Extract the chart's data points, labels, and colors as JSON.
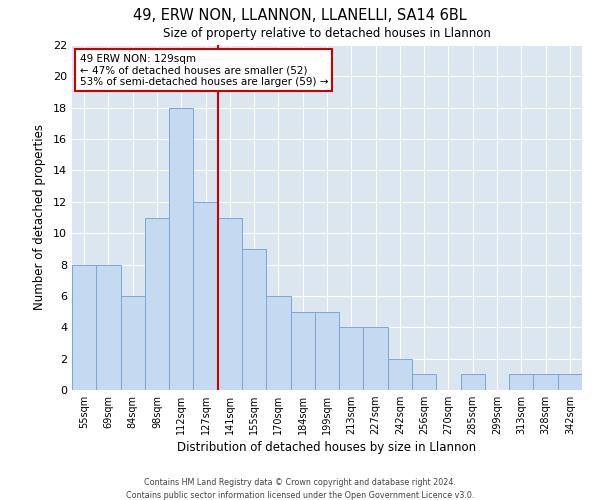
{
  "title": "49, ERW NON, LLANNON, LLANELLI, SA14 6BL",
  "subtitle": "Size of property relative to detached houses in Llannon",
  "xlabel": "Distribution of detached houses by size in Llannon",
  "ylabel": "Number of detached properties",
  "bar_labels": [
    "55sqm",
    "69sqm",
    "84sqm",
    "98sqm",
    "112sqm",
    "127sqm",
    "141sqm",
    "155sqm",
    "170sqm",
    "184sqm",
    "199sqm",
    "213sqm",
    "227sqm",
    "242sqm",
    "256sqm",
    "270sqm",
    "285sqm",
    "299sqm",
    "313sqm",
    "328sqm",
    "342sqm"
  ],
  "bar_values": [
    8,
    8,
    6,
    11,
    18,
    12,
    11,
    9,
    6,
    5,
    5,
    4,
    4,
    2,
    1,
    0,
    1,
    0,
    1,
    1,
    1
  ],
  "bar_color": "#c5d9f1",
  "bar_edgecolor": "#7ba7d4",
  "vline_x": 5.5,
  "vline_color": "#cc0000",
  "ylim": [
    0,
    22
  ],
  "yticks": [
    0,
    2,
    4,
    6,
    8,
    10,
    12,
    14,
    16,
    18,
    20,
    22
  ],
  "annotation_title": "49 ERW NON: 129sqm",
  "annotation_line1": "← 47% of detached houses are smaller (52)",
  "annotation_line2": "53% of semi-detached houses are larger (59) →",
  "grid_color": "#ffffff",
  "bg_color": "#dce6f1",
  "footer1": "Contains HM Land Registry data © Crown copyright and database right 2024.",
  "footer2": "Contains public sector information licensed under the Open Government Licence v3.0."
}
